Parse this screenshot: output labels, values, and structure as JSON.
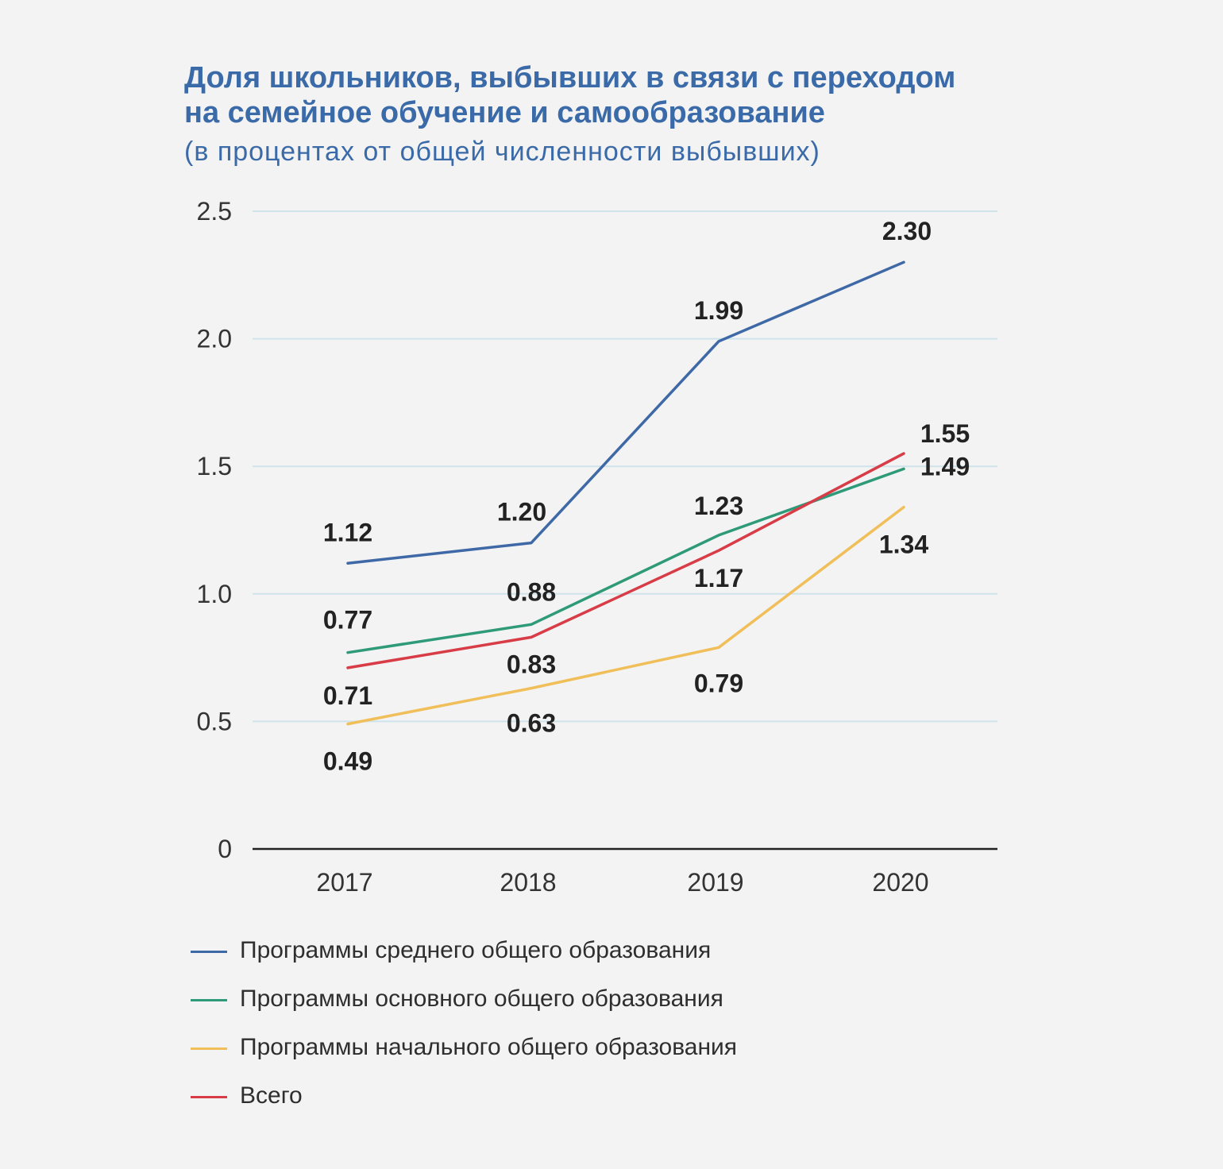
{
  "header": {
    "title_line1": "Доля школьников, выбывших в связи с переходом",
    "title_line2": "на семейное обучение и самообразование",
    "subtitle": "(в процентах от общей численности выбывших)"
  },
  "chart_data": {
    "type": "line",
    "title": "Доля школьников, выбывших в связи с переходом на семейное обучение и самообразование",
    "subtitle": "(в процентах от общей численности выбывших)",
    "xlabel": "",
    "ylabel": "",
    "categories": [
      "2017",
      "2018",
      "2019",
      "2020"
    ],
    "ylim": [
      0,
      2.5
    ],
    "yticks": [
      0,
      0.5,
      1.0,
      1.5,
      2.0,
      2.5
    ],
    "ytick_labels": [
      "0",
      "0.5",
      "1.0",
      "1.5",
      "2.0",
      "2.5"
    ],
    "grid": true,
    "legend_position": "bottom",
    "series": [
      {
        "name": "Программы среднего общего образования",
        "color": "#3f69a6",
        "values": [
          1.12,
          1.2,
          1.99,
          2.3
        ],
        "labels": [
          "1.12",
          "1.20",
          "1.99",
          "2.30"
        ]
      },
      {
        "name": "Программы основного общего образования",
        "color": "#2e9a78",
        "values": [
          0.77,
          0.88,
          1.23,
          1.49
        ],
        "labels": [
          "0.77",
          "0.88",
          "1.23",
          "1.49"
        ]
      },
      {
        "name": "Программы начального общего образования",
        "color": "#f0bf5a",
        "values": [
          0.49,
          0.63,
          0.79,
          1.34
        ],
        "labels": [
          "0.49",
          "0.63",
          "0.79",
          "1.34"
        ]
      },
      {
        "name": "Всего",
        "color": "#d73c47",
        "values": [
          0.71,
          0.83,
          1.17,
          1.55
        ],
        "labels": [
          "0.71",
          "0.83",
          "1.17",
          "1.55"
        ]
      }
    ]
  }
}
